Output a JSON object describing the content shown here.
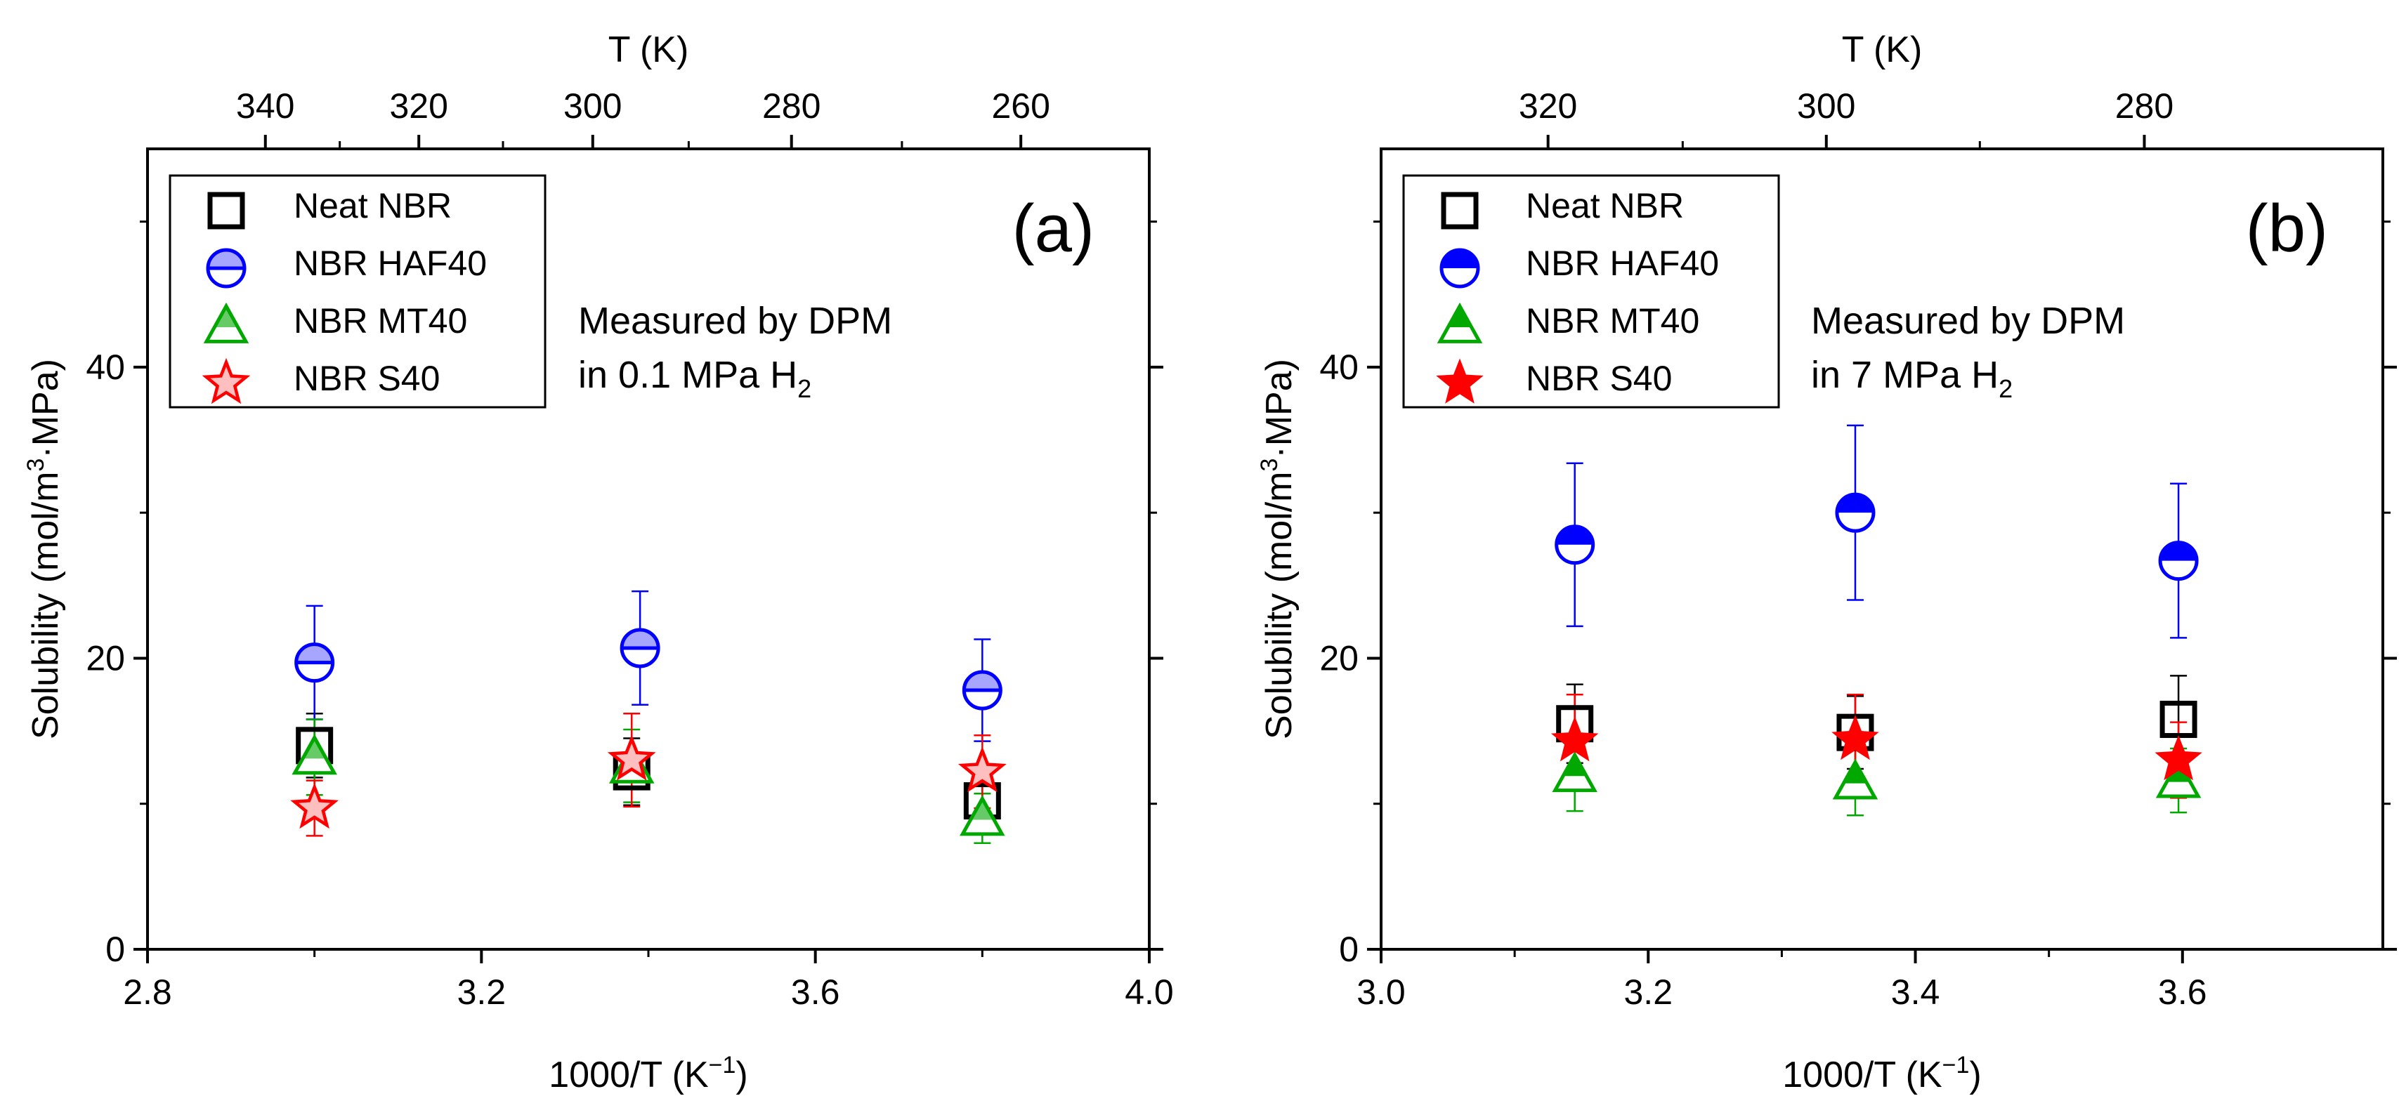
{
  "chart_data": [
    {
      "type": "scatter",
      "panel_label": "(a)",
      "xlabel": "1000/T (K",
      "xlabel_sup": "−1",
      "xlabel_end": ")",
      "ylabel": "Solubility (mol/m",
      "ylabel_sup": "3",
      "ylabel_end": "·MPa)",
      "top_axis_label": "T (K)",
      "xlim": [
        2.8,
        4.0
      ],
      "ylim": [
        0,
        55
      ],
      "x_ticks": [
        2.8,
        3.2,
        3.6,
        4.0
      ],
      "x_tick_labels": [
        "2.8",
        "3.2",
        "3.6",
        "4.0"
      ],
      "y_ticks": [
        0,
        20,
        40
      ],
      "y_tick_labels": [
        "0",
        "20",
        "40"
      ],
      "top_ticks": [
        340,
        320,
        300,
        280,
        260
      ],
      "top_tick_labels": [
        "340",
        "320",
        "300",
        "280",
        "260"
      ],
      "annotation": {
        "line1": "Measured by DPM",
        "line2": "in 0.1 MPa H",
        "line2_sub": "2"
      },
      "legend": [
        "Neat NBR",
        "NBR HAF40",
        "NBR MT40",
        "NBR S40"
      ],
      "series": [
        {
          "name": "Neat NBR",
          "marker": "square-open",
          "color": "#000000",
          "x": [
            3.0,
            3.38,
            3.8
          ],
          "y": [
            14.0,
            12.2,
            10.2
          ],
          "err": [
            2.2,
            2.3,
            1.8
          ]
        },
        {
          "name": "NBR HAF40",
          "marker": "circle-bar-top",
          "color": "#0000ff",
          "x": [
            3.0,
            3.39,
            3.8
          ],
          "y": [
            19.7,
            20.7,
            17.8
          ],
          "err": [
            3.9,
            3.9,
            3.5
          ]
        },
        {
          "name": "NBR MT40",
          "marker": "triangle-split",
          "color": "#00a800",
          "x": [
            3.0,
            3.38,
            3.8
          ],
          "y": [
            13.2,
            12.6,
            9.0
          ],
          "err": [
            2.6,
            2.5,
            1.7
          ]
        },
        {
          "name": "NBR S40",
          "marker": "star-split",
          "color": "#ff0000",
          "x": [
            3.0,
            3.38,
            3.8
          ],
          "y": [
            9.7,
            13.0,
            12.2
          ],
          "err": [
            1.9,
            3.2,
            2.5
          ]
        }
      ]
    },
    {
      "type": "scatter",
      "panel_label": "(b)",
      "xlabel": "1000/T (K",
      "xlabel_sup": "−1",
      "xlabel_end": ")",
      "ylabel": "Solubility (mol/m",
      "ylabel_sup": "3",
      "ylabel_end": "·MPa)",
      "top_axis_label": "T (K)",
      "xlim": [
        3.0,
        3.75
      ],
      "ylim": [
        0,
        55
      ],
      "x_ticks": [
        3.0,
        3.2,
        3.4,
        3.6
      ],
      "x_tick_labels": [
        "3.0",
        "3.2",
        "3.4",
        "3.6"
      ],
      "y_ticks": [
        0,
        20,
        40
      ],
      "y_tick_labels": [
        "0",
        "20",
        "40"
      ],
      "top_ticks": [
        320,
        300,
        280
      ],
      "top_tick_labels": [
        "320",
        "300",
        "280"
      ],
      "annotation": {
        "line1": "Measured by DPM",
        "line2": "in 7 MPa H",
        "line2_sub": "2"
      },
      "legend": [
        "Neat NBR",
        "NBR HAF40",
        "NBR MT40",
        "NBR S40"
      ],
      "series": [
        {
          "name": "Neat NBR",
          "marker": "square-open",
          "color": "#000000",
          "x": [
            3.145,
            3.355,
            3.597
          ],
          "y": [
            15.5,
            14.9,
            15.8
          ],
          "err": [
            2.7,
            2.5,
            3.0
          ]
        },
        {
          "name": "NBR HAF40",
          "marker": "circle-fill-top",
          "color": "#0000ff",
          "x": [
            3.145,
            3.355,
            3.597
          ],
          "y": [
            27.8,
            30.0,
            26.7
          ],
          "err": [
            5.6,
            6.0,
            5.3
          ]
        },
        {
          "name": "NBR MT40",
          "marker": "triangle-fill-top",
          "color": "#00a800",
          "x": [
            3.145,
            3.355,
            3.597
          ],
          "y": [
            12.0,
            11.5,
            11.6
          ],
          "err": [
            2.5,
            2.3,
            2.2
          ]
        },
        {
          "name": "NBR S40",
          "marker": "star-filled",
          "color": "#ff0000",
          "x": [
            3.145,
            3.355,
            3.597
          ],
          "y": [
            14.3,
            14.4,
            13.0
          ],
          "err": [
            3.2,
            3.1,
            2.6
          ]
        }
      ]
    }
  ]
}
